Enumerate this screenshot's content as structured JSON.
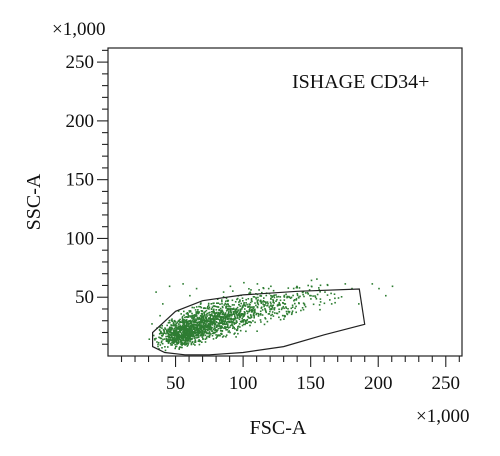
{
  "chart_data": {
    "type": "scatter",
    "title": "",
    "annotation": "ISHAGE CD34+",
    "xlabel": "FSC-A",
    "ylabel": "SSC-A",
    "x_multiplier": "×1,000",
    "y_multiplier": "×1,000",
    "xlim": [
      0,
      262
    ],
    "ylim": [
      0,
      262
    ],
    "x_ticks": [
      50,
      100,
      150,
      200,
      250
    ],
    "y_ticks": [
      50,
      100,
      150,
      200,
      250
    ],
    "x_tick_labels": [
      "50",
      "100",
      "150",
      "200",
      "250"
    ],
    "y_tick_labels": [
      "50",
      "100",
      "150",
      "200",
      "250"
    ],
    "minor_tick_step": 10,
    "grid": false,
    "point_color": "#2e7d32",
    "gate_color": "#222222",
    "gate_polygon": [
      [
        33,
        20
      ],
      [
        33,
        8
      ],
      [
        42,
        3
      ],
      [
        57,
        1
      ],
      [
        75,
        1
      ],
      [
        100,
        3
      ],
      [
        130,
        8
      ],
      [
        160,
        18
      ],
      [
        190,
        27
      ],
      [
        186,
        57
      ],
      [
        140,
        55
      ],
      [
        100,
        52
      ],
      [
        70,
        47
      ],
      [
        50,
        38
      ]
    ],
    "cluster_centers": [
      [
        55,
        20
      ],
      [
        70,
        28
      ],
      [
        85,
        33
      ],
      [
        110,
        42
      ],
      [
        140,
        48
      ]
    ],
    "outlier_points": [
      [
        35,
        55
      ],
      [
        45,
        60
      ],
      [
        55,
        62
      ],
      [
        65,
        58
      ],
      [
        90,
        60
      ],
      [
        100,
        63
      ],
      [
        120,
        60
      ],
      [
        150,
        60
      ],
      [
        160,
        55
      ],
      [
        170,
        50
      ],
      [
        180,
        58
      ],
      [
        195,
        62
      ],
      [
        210,
        60
      ],
      [
        205,
        52
      ],
      [
        185,
        45
      ],
      [
        165,
        45
      ],
      [
        130,
        35
      ],
      [
        60,
        52
      ],
      [
        40,
        45
      ],
      [
        150,
        65
      ],
      [
        110,
        62
      ],
      [
        85,
        55
      ],
      [
        175,
        62
      ],
      [
        120,
        52
      ],
      [
        200,
        58
      ],
      [
        38,
        35
      ],
      [
        32,
        28
      ],
      [
        30,
        15
      ]
    ]
  }
}
